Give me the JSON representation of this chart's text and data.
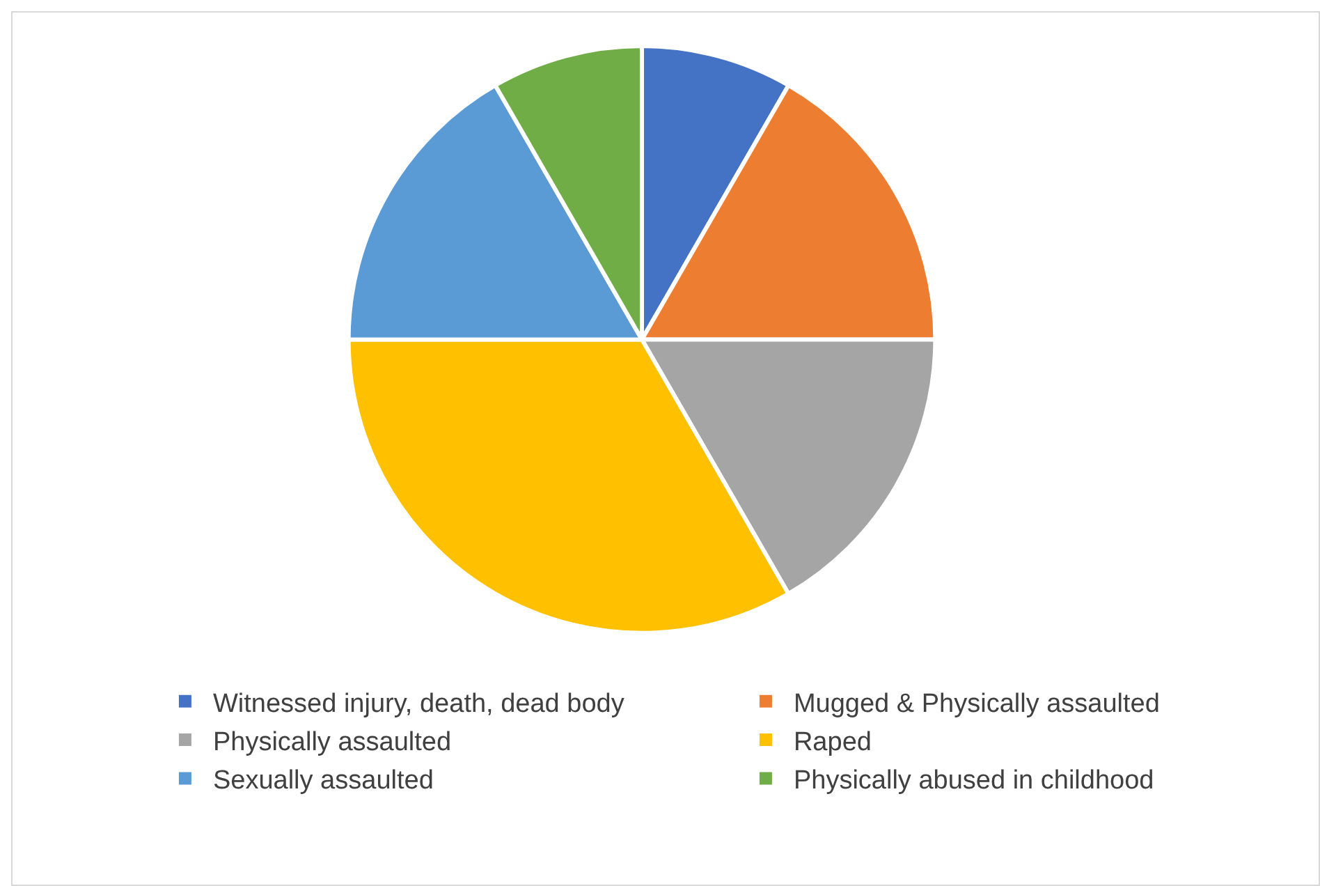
{
  "chart_data": {
    "type": "pie",
    "categories": [
      "Witnessed injury, death, dead body",
      "Mugged & Physically assaulted",
      "Physically assaulted",
      "Raped",
      "Sexually assaulted",
      "Physically abused in childhood"
    ],
    "values": [
      8.33,
      16.67,
      16.67,
      33.33,
      16.67,
      8.33
    ],
    "colors": [
      "#4472c4",
      "#ed7d31",
      "#a5a5a5",
      "#ffc000",
      "#5b9bd5",
      "#70ad47"
    ],
    "legend": "bottom"
  }
}
